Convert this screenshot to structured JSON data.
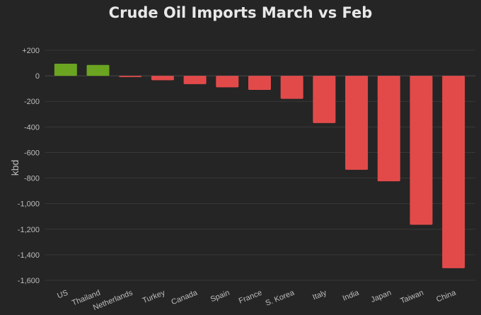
{
  "chart_data": {
    "type": "bar",
    "title": "Crude Oil Imports March vs Feb",
    "xlabel": "",
    "ylabel": "kbd",
    "ylim": [
      -1600,
      200
    ],
    "yticks": [
      200,
      0,
      -200,
      -400,
      -600,
      -800,
      -1000,
      -1200,
      -1400,
      -1600
    ],
    "ytick_labels": [
      "+200",
      "0",
      "-200",
      "-400",
      "-600",
      "-800",
      "-1,000",
      "-1,200",
      "-1,400",
      "-1,600"
    ],
    "grid": true,
    "categories": [
      "US",
      "Thailand",
      "Netherlands",
      "Turkey",
      "Canada",
      "Spain",
      "France",
      "S. Korea",
      "Italy",
      "India",
      "Japan",
      "Taiwan",
      "China"
    ],
    "values": [
      95,
      85,
      -10,
      -35,
      -65,
      -90,
      -110,
      -180,
      -370,
      -735,
      -825,
      -1165,
      -1505
    ],
    "colors": {
      "positive": "#6aa421",
      "negative": "#e24a4a"
    }
  }
}
